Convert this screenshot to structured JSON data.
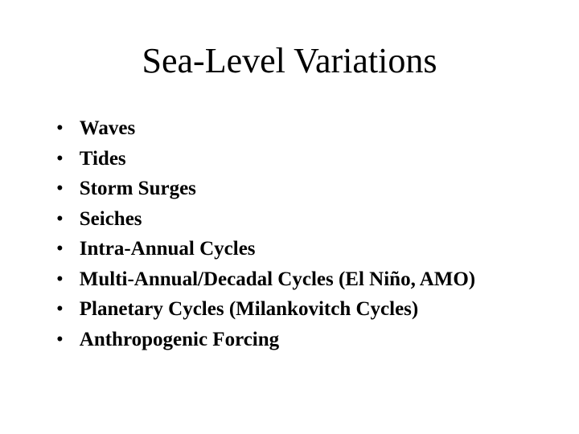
{
  "slide": {
    "title": "Sea-Level Variations",
    "title_fontsize": 44,
    "title_color": "#000000",
    "background_color": "#ffffff",
    "text_color": "#000000",
    "bullet_fontsize": 25,
    "bullet_fontweight": "bold",
    "bullets": [
      "Waves",
      "Tides",
      "Storm Surges",
      "Seiches",
      "Intra-Annual Cycles",
      "Multi-Annual/Decadal Cycles (El Niño, AMO)",
      "Planetary Cycles (Milankovitch Cycles)",
      "Anthropogenic Forcing"
    ]
  }
}
